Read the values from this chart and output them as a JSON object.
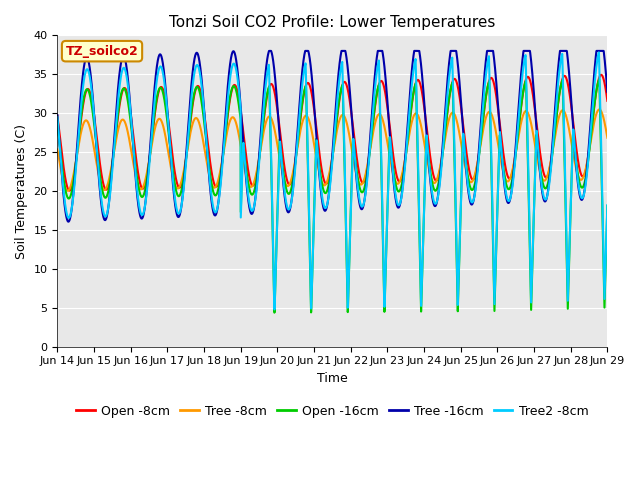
{
  "title": "Tonzi Soil CO2 Profile: Lower Temperatures",
  "xlabel": "Time",
  "ylabel": "Soil Temperatures (C)",
  "ylim": [
    0,
    40
  ],
  "xlim": [
    0,
    15
  ],
  "xtick_labels": [
    "Jun 14",
    "Jun 15",
    "Jun 16",
    "Jun 17",
    "Jun 18",
    "Jun 19",
    "Jun 20",
    "Jun 21",
    "Jun 22",
    "Jun 23",
    "Jun 24",
    "Jun 25",
    "Jun 26",
    "Jun 27",
    "Jun 28",
    "Jun 29"
  ],
  "series_labels": [
    "Open -8cm",
    "Tree -8cm",
    "Open -16cm",
    "Tree -16cm",
    "Tree2 -8cm"
  ],
  "series_colors": [
    "#ff0000",
    "#ff9900",
    "#00cc00",
    "#0000aa",
    "#00ccff"
  ],
  "legend_label": "TZ_soilco2",
  "background_color": "#e8e8e8",
  "fig_background": "#ffffff",
  "title_fontsize": 11,
  "axis_fontsize": 9,
  "tick_fontsize": 8,
  "legend_fontsize": 9,
  "line_width": 1.5
}
